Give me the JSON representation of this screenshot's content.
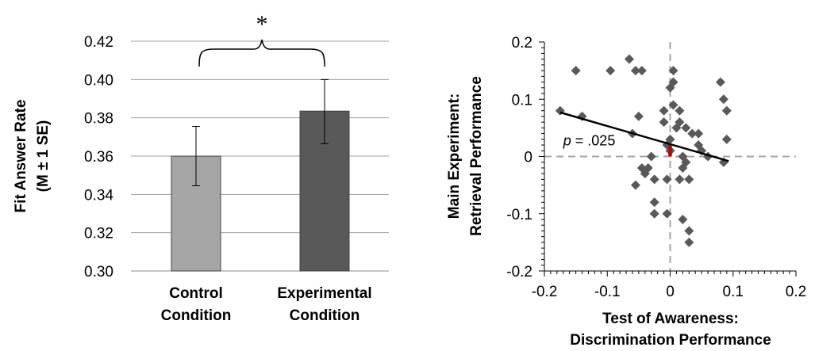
{
  "chart_data": [
    {
      "type": "bar",
      "categories": [
        "Control Condition",
        "Experimental Condition"
      ],
      "category_lines": [
        [
          "Control",
          "Condition"
        ],
        [
          "Experimental",
          "Condition"
        ]
      ],
      "values": [
        0.36,
        0.3835
      ],
      "error_low": [
        0.3445,
        0.3665
      ],
      "error_high": [
        0.3755,
        0.4
      ],
      "bar_colors": [
        "#a6a6a6",
        "#595959"
      ],
      "ylabel_lines": [
        "Fit Answer Rate",
        "(M ± 1 SE)"
      ],
      "ylim": [
        0.3,
        0.42
      ],
      "yticks": [
        "0.30",
        "0.32",
        "0.34",
        "0.36",
        "0.38",
        "0.40",
        "0.42"
      ],
      "grid": true,
      "significance_marker": "*"
    },
    {
      "type": "scatter",
      "xlabel_lines": [
        "Test of Awareness:",
        "Discrimination Performance"
      ],
      "ylabel_lines": [
        "Main Experiment:",
        "Retrieval Performance"
      ],
      "xlim": [
        -0.2,
        0.2
      ],
      "ylim": [
        -0.2,
        0.2
      ],
      "xticks": [
        "-0.2",
        "-0.1",
        "0",
        "0.1",
        "0.2"
      ],
      "yticks": [
        "-0.2",
        "-0.1",
        "0",
        "0.1",
        "0.2"
      ],
      "grid": false,
      "reference_lines": "dashed at x=0 and y=0",
      "marker": "diamond",
      "marker_color": "#595959",
      "trend_line": {
        "x": [
          -0.175,
          0.093
        ],
        "y": [
          0.077,
          -0.008
        ]
      },
      "highlight_segment": {
        "x": 0.0,
        "y": [
          0.0,
          0.02
        ],
        "color": "#c00000"
      },
      "annotation": {
        "italic": "p",
        "rest": " = .025",
        "x": -0.17,
        "y": 0.015
      },
      "points": [
        [
          -0.175,
          0.08
        ],
        [
          -0.15,
          0.15
        ],
        [
          -0.14,
          0.07
        ],
        [
          -0.095,
          0.15
        ],
        [
          -0.065,
          0.17
        ],
        [
          -0.06,
          0.04
        ],
        [
          -0.055,
          0.15
        ],
        [
          -0.045,
          0.15
        ],
        [
          -0.055,
          -0.05
        ],
        [
          -0.05,
          0.07
        ],
        [
          -0.045,
          -0.02
        ],
        [
          -0.04,
          -0.03
        ],
        [
          -0.035,
          -0.02
        ],
        [
          -0.03,
          0.0
        ],
        [
          -0.025,
          -0.04
        ],
        [
          -0.025,
          -0.08
        ],
        [
          -0.025,
          -0.1
        ],
        [
          -0.01,
          0.06
        ],
        [
          -0.01,
          0.08
        ],
        [
          -0.005,
          0.02
        ],
        [
          0.0,
          0.01
        ],
        [
          0.0,
          0.12
        ],
        [
          -0.005,
          -0.04
        ],
        [
          -0.005,
          -0.1
        ],
        [
          0.0,
          0.03
        ],
        [
          0.005,
          0.15
        ],
        [
          0.005,
          0.13
        ],
        [
          0.005,
          0.09
        ],
        [
          0.01,
          0.05
        ],
        [
          0.015,
          0.06
        ],
        [
          0.015,
          0.08
        ],
        [
          0.02,
          0.0
        ],
        [
          0.02,
          -0.02
        ],
        [
          0.015,
          -0.04
        ],
        [
          0.02,
          -0.11
        ],
        [
          0.025,
          0.05
        ],
        [
          0.025,
          -0.01
        ],
        [
          0.03,
          -0.04
        ],
        [
          0.03,
          -0.13
        ],
        [
          0.03,
          -0.15
        ],
        [
          0.035,
          0.04
        ],
        [
          0.045,
          0.04
        ],
        [
          0.045,
          0.02
        ],
        [
          0.05,
          0.01
        ],
        [
          0.06,
          0.0
        ],
        [
          0.08,
          0.13
        ],
        [
          0.085,
          0.1
        ],
        [
          0.09,
          0.08
        ],
        [
          0.09,
          0.03
        ],
        [
          0.085,
          -0.01
        ]
      ]
    }
  ]
}
